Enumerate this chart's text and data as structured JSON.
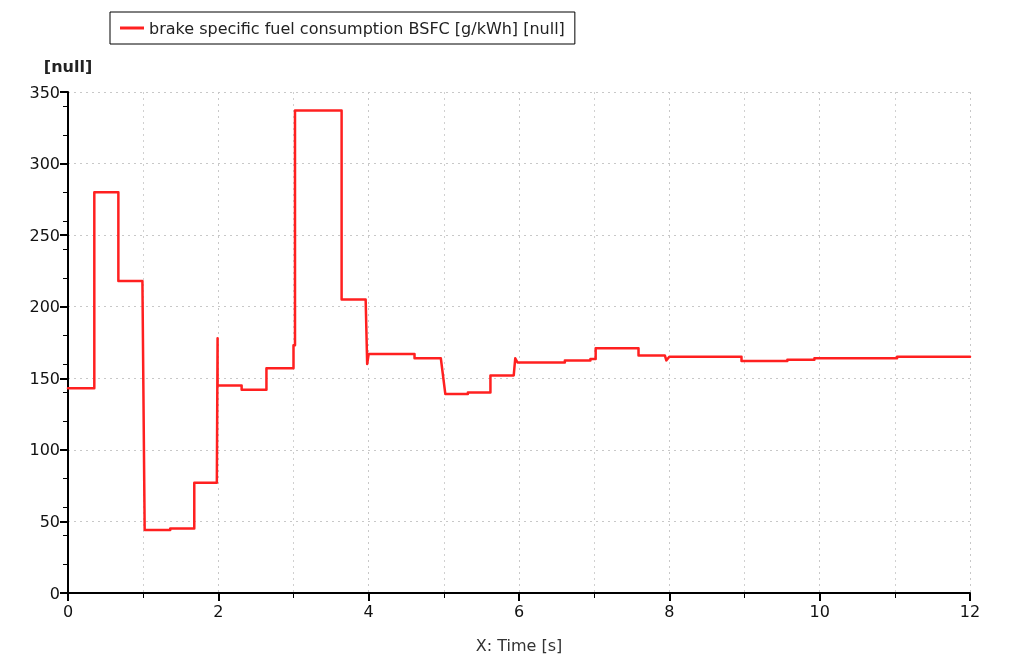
{
  "chart_data": {
    "type": "line",
    "xlabel": "X: Time [s]",
    "ylabel": "[null]",
    "series": [
      {
        "name": "brake specific fuel consumption BSFC [g/kWh] [null]",
        "color": "#ff2020",
        "x": [
          0,
          0.35,
          0.35,
          0.67,
          0.67,
          0.99,
          1.02,
          1.36,
          1.36,
          1.68,
          1.68,
          1.98,
          1.99,
          1.99,
          2.0,
          2.31,
          2.31,
          2.64,
          2.64,
          3.0,
          3.0,
          3.02,
          3.02,
          3.64,
          3.64,
          3.96,
          3.98,
          4.0,
          4.61,
          4.61,
          4.96,
          5.02,
          5.32,
          5.32,
          5.62,
          5.62,
          5.93,
          5.95,
          5.98,
          6.61,
          6.61,
          6.95,
          6.95,
          7.02,
          7.02,
          7.59,
          7.59,
          7.94,
          7.96,
          8.0,
          8.96,
          8.96,
          9.57,
          9.57,
          9.93,
          9.93,
          11.03,
          11.03,
          12
        ],
        "values": [
          143,
          143,
          280,
          280,
          218,
          218,
          44,
          44,
          45,
          45,
          77,
          77,
          178,
          145,
          145,
          145,
          142,
          142,
          157,
          157,
          173,
          173,
          337,
          337,
          205,
          205,
          160,
          167,
          167,
          164,
          164,
          139,
          139,
          140,
          140,
          152,
          152,
          164,
          161,
          161,
          162.5,
          162.5,
          163.5,
          163.5,
          171,
          171,
          166,
          166,
          162.5,
          165,
          165,
          162,
          162,
          163,
          163,
          164,
          164,
          165,
          165
        ]
      }
    ],
    "xlim": [
      0,
      12
    ],
    "xticks": [
      0,
      2,
      4,
      6,
      8,
      10,
      12
    ],
    "ylim": [
      0,
      350
    ],
    "yticks": [
      0,
      50,
      100,
      150,
      200,
      250,
      300,
      350
    ],
    "grid": true,
    "legend": "top",
    "marker": "none",
    "line_style": "solid"
  }
}
